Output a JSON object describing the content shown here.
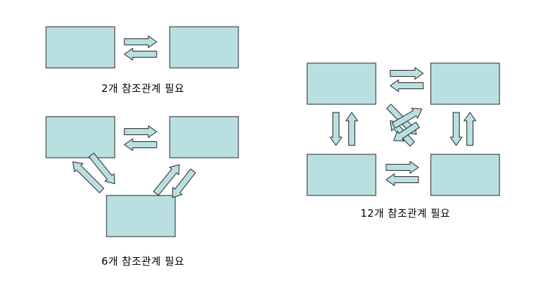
{
  "colors": {
    "box_fill": "#b9dfe1",
    "arrow_fill": "#b9dfe1",
    "stroke": "#222222",
    "text": "#000000"
  },
  "captions": {
    "two_nodes": "2개 참조관계 필요",
    "three_nodes": "6개 참조관계 필요",
    "four_nodes": "12개 참조관계 필요"
  }
}
